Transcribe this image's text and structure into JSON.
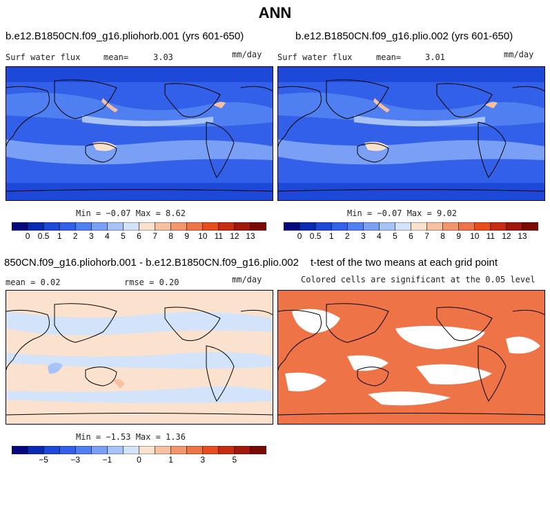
{
  "main_title": "ANN",
  "unit": "mm/day",
  "panels": [
    {
      "title": "b.e12.B1850CN.f09_g16.pliohorb.001 (yrs 601-650)",
      "var_label": "Surf water flux",
      "mean_label": "mean=",
      "mean_value": "3.03",
      "minmax_text": "Min =  −0.07 Max =   8.62"
    },
    {
      "title": "b.e12.B1850CN.f09_g16.plio.002 (yrs 601-650)",
      "var_label": "Surf water flux",
      "mean_label": "mean=",
      "mean_value": "3.01",
      "minmax_text": "Min =  −0.07 Max =   9.02"
    },
    {
      "title": "850CN.f09_g16.pliohorb.001 - b.e12.B1850CN.f09_g16.plio.002",
      "mean_text": "mean =   0.02",
      "rmse_text": "rmse =   0.20",
      "minmax_text": "Min =  −1.53 Max =   1.36"
    },
    {
      "title": "t-test of the two means at each grid point",
      "subtitle": "Colored cells are significant at the 0.05 level"
    }
  ],
  "colorbar_abs": {
    "labels": [
      "0",
      "0.5",
      "1",
      "2",
      "3",
      "4",
      "5",
      "6",
      "7",
      "8",
      "9",
      "10",
      "11",
      "12",
      "13"
    ],
    "colors": [
      "#08087e",
      "#0a2ab3",
      "#1e48d8",
      "#3360e8",
      "#4f7ff0",
      "#7aa0f5",
      "#a7c3f7",
      "#d3e3fa",
      "#fbe2cf",
      "#f7c0a0",
      "#f2976b",
      "#ee7347",
      "#e84d1e",
      "#c72b12",
      "#a0180b",
      "#7a0a05"
    ]
  },
  "colorbar_diff": {
    "labels": [
      "−5",
      "−3",
      "−1",
      "0",
      "1",
      "3",
      "5"
    ],
    "colors": [
      "#08087e",
      "#0a2ab3",
      "#1e48d8",
      "#3360e8",
      "#4f7ff0",
      "#7aa0f5",
      "#a7c3f7",
      "#d3e3fa",
      "#fbe2cf",
      "#f7c0a0",
      "#f2976b",
      "#ee7347",
      "#e84d1e",
      "#c72b12",
      "#a0180b",
      "#7a0a05"
    ]
  },
  "chart_data": [
    {
      "type": "heatmap",
      "title": "b.e12.B1850CN.f09_g16.pliohorb.001 (yrs 601-650)",
      "variable": "Surf water flux",
      "units": "mm/day",
      "mean": 3.03,
      "min": -0.07,
      "max": 8.62,
      "colorbar_levels": [
        0,
        0.5,
        1,
        2,
        3,
        4,
        5,
        6,
        7,
        8,
        9,
        10,
        11,
        12,
        13
      ]
    },
    {
      "type": "heatmap",
      "title": "b.e12.B1850CN.f09_g16.plio.002 (yrs 601-650)",
      "variable": "Surf water flux",
      "units": "mm/day",
      "mean": 3.01,
      "min": -0.07,
      "max": 9.02,
      "colorbar_levels": [
        0,
        0.5,
        1,
        2,
        3,
        4,
        5,
        6,
        7,
        8,
        9,
        10,
        11,
        12,
        13
      ]
    },
    {
      "type": "heatmap",
      "title": "850CN.f09_g16.pliohorb.001 - b.e12.B1850CN.f09_g16.plio.002",
      "units": "mm/day",
      "mean": 0.02,
      "rmse": 0.2,
      "min": -1.53,
      "max": 1.36,
      "colorbar_levels": [
        -5,
        -3,
        -1,
        0,
        1,
        3,
        5
      ]
    },
    {
      "type": "heatmap",
      "title": "t-test of the two means at each grid point",
      "subtitle": "Colored cells are significant at the 0.05 level"
    }
  ]
}
